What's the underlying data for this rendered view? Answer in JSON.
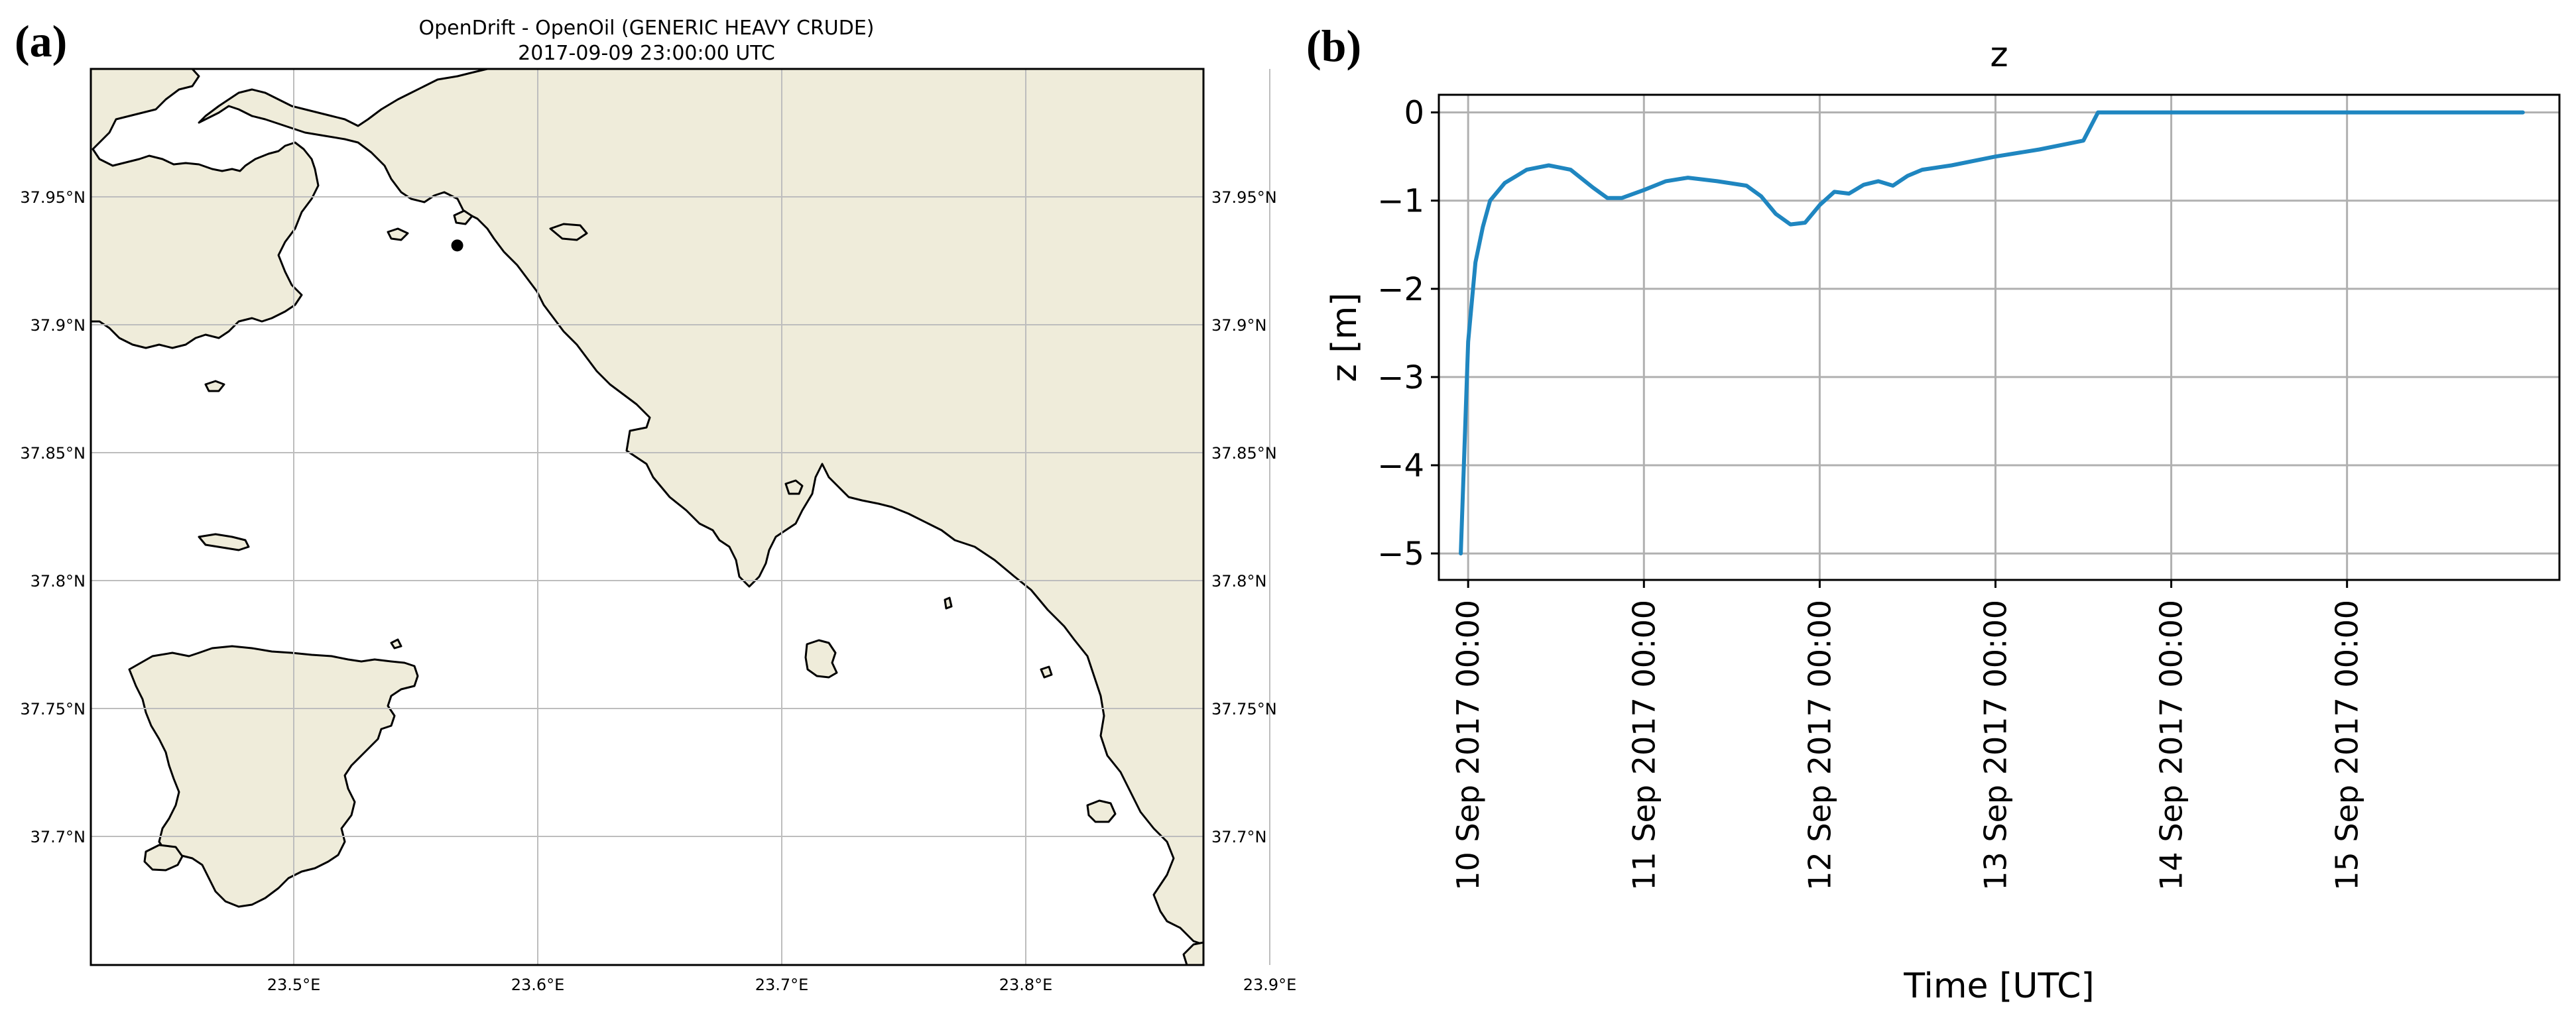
{
  "panel_a": {
    "panel_label": "(a)",
    "title": "OpenDrift - OpenOil (GENERIC HEAVY CRUDE)",
    "subtitle": "2017-09-09 23:00:00 UTC",
    "colors": {
      "land": "#efecda",
      "sea": "#ffffff",
      "coast": "#000000",
      "grid": "#bdbdbd"
    },
    "lat_ticks": [
      "37.95°N",
      "37.9°N",
      "37.85°N",
      "37.8°N",
      "37.75°N",
      "37.7°N"
    ],
    "lon_ticks": [
      "23.5°E",
      "23.6°E",
      "23.7°E",
      "23.8°E",
      "23.9°E"
    ],
    "particle": {
      "lon": 23.567,
      "lat": 37.931
    }
  },
  "panel_b": {
    "panel_label": "(b)",
    "colors": {
      "line": "#1f86c0",
      "grid": "#b0b0b0"
    },
    "chart_data": {
      "type": "line",
      "title": "z",
      "xlabel": "Time  [UTC]",
      "ylabel": "z  [m]",
      "ylim": [
        -5.3,
        0.2
      ],
      "xlim": [
        "2017-09-09 20:00",
        "2017-09-16 05:00"
      ],
      "grid": true,
      "x_ticks": [
        "10 Sep 2017 00:00",
        "11 Sep 2017 00:00",
        "12 Sep 2017 00:00",
        "13 Sep 2017 00:00",
        "14 Sep 2017 00:00",
        "15 Sep 2017 00:00"
      ],
      "y_ticks": [
        "0",
        "−1",
        "−2",
        "−3",
        "−4",
        "−5"
      ],
      "y_tick_values": [
        0,
        -1,
        -2,
        -3,
        -4,
        -5
      ],
      "series": [
        {
          "x": [
            "2017-09-09 23:00",
            "2017-09-10 00:00",
            "2017-09-10 01:00",
            "2017-09-10 02:00",
            "2017-09-10 03:00",
            "2017-09-10 05:00",
            "2017-09-10 08:00",
            "2017-09-10 11:00",
            "2017-09-10 14:00",
            "2017-09-10 17:00",
            "2017-09-10 19:00",
            "2017-09-10 21:00",
            "2017-09-11 00:00",
            "2017-09-11 03:00",
            "2017-09-11 06:00",
            "2017-09-11 10:00",
            "2017-09-11 14:00",
            "2017-09-11 16:00",
            "2017-09-11 18:00",
            "2017-09-11 20:00",
            "2017-09-11 22:00",
            "2017-09-12 00:00",
            "2017-09-12 02:00",
            "2017-09-12 04:00",
            "2017-09-12 06:00",
            "2017-09-12 08:00",
            "2017-09-12 10:00",
            "2017-09-12 12:00",
            "2017-09-12 14:00",
            "2017-09-12 18:00",
            "2017-09-13 00:00",
            "2017-09-13 06:00",
            "2017-09-13 12:00",
            "2017-09-13 14:00",
            "2017-09-13 14:30",
            "2017-09-13 16:00",
            "2017-09-14 00:00",
            "2017-09-15 00:00",
            "2017-09-16 00:00"
          ],
          "y": [
            -5.0,
            -2.6,
            -1.7,
            -1.3,
            -1.0,
            -0.8,
            -0.65,
            -0.6,
            -0.65,
            -0.85,
            -0.97,
            -0.97,
            -0.88,
            -0.78,
            -0.74,
            -0.78,
            -0.83,
            -0.95,
            -1.15,
            -1.27,
            -1.25,
            -1.05,
            -0.9,
            -0.92,
            -0.82,
            -0.78,
            -0.83,
            -0.72,
            -0.65,
            -0.6,
            -0.5,
            -0.42,
            -0.32,
            0.0,
            0.0,
            0.0,
            0.0,
            0.0,
            0.0
          ]
        }
      ]
    }
  }
}
